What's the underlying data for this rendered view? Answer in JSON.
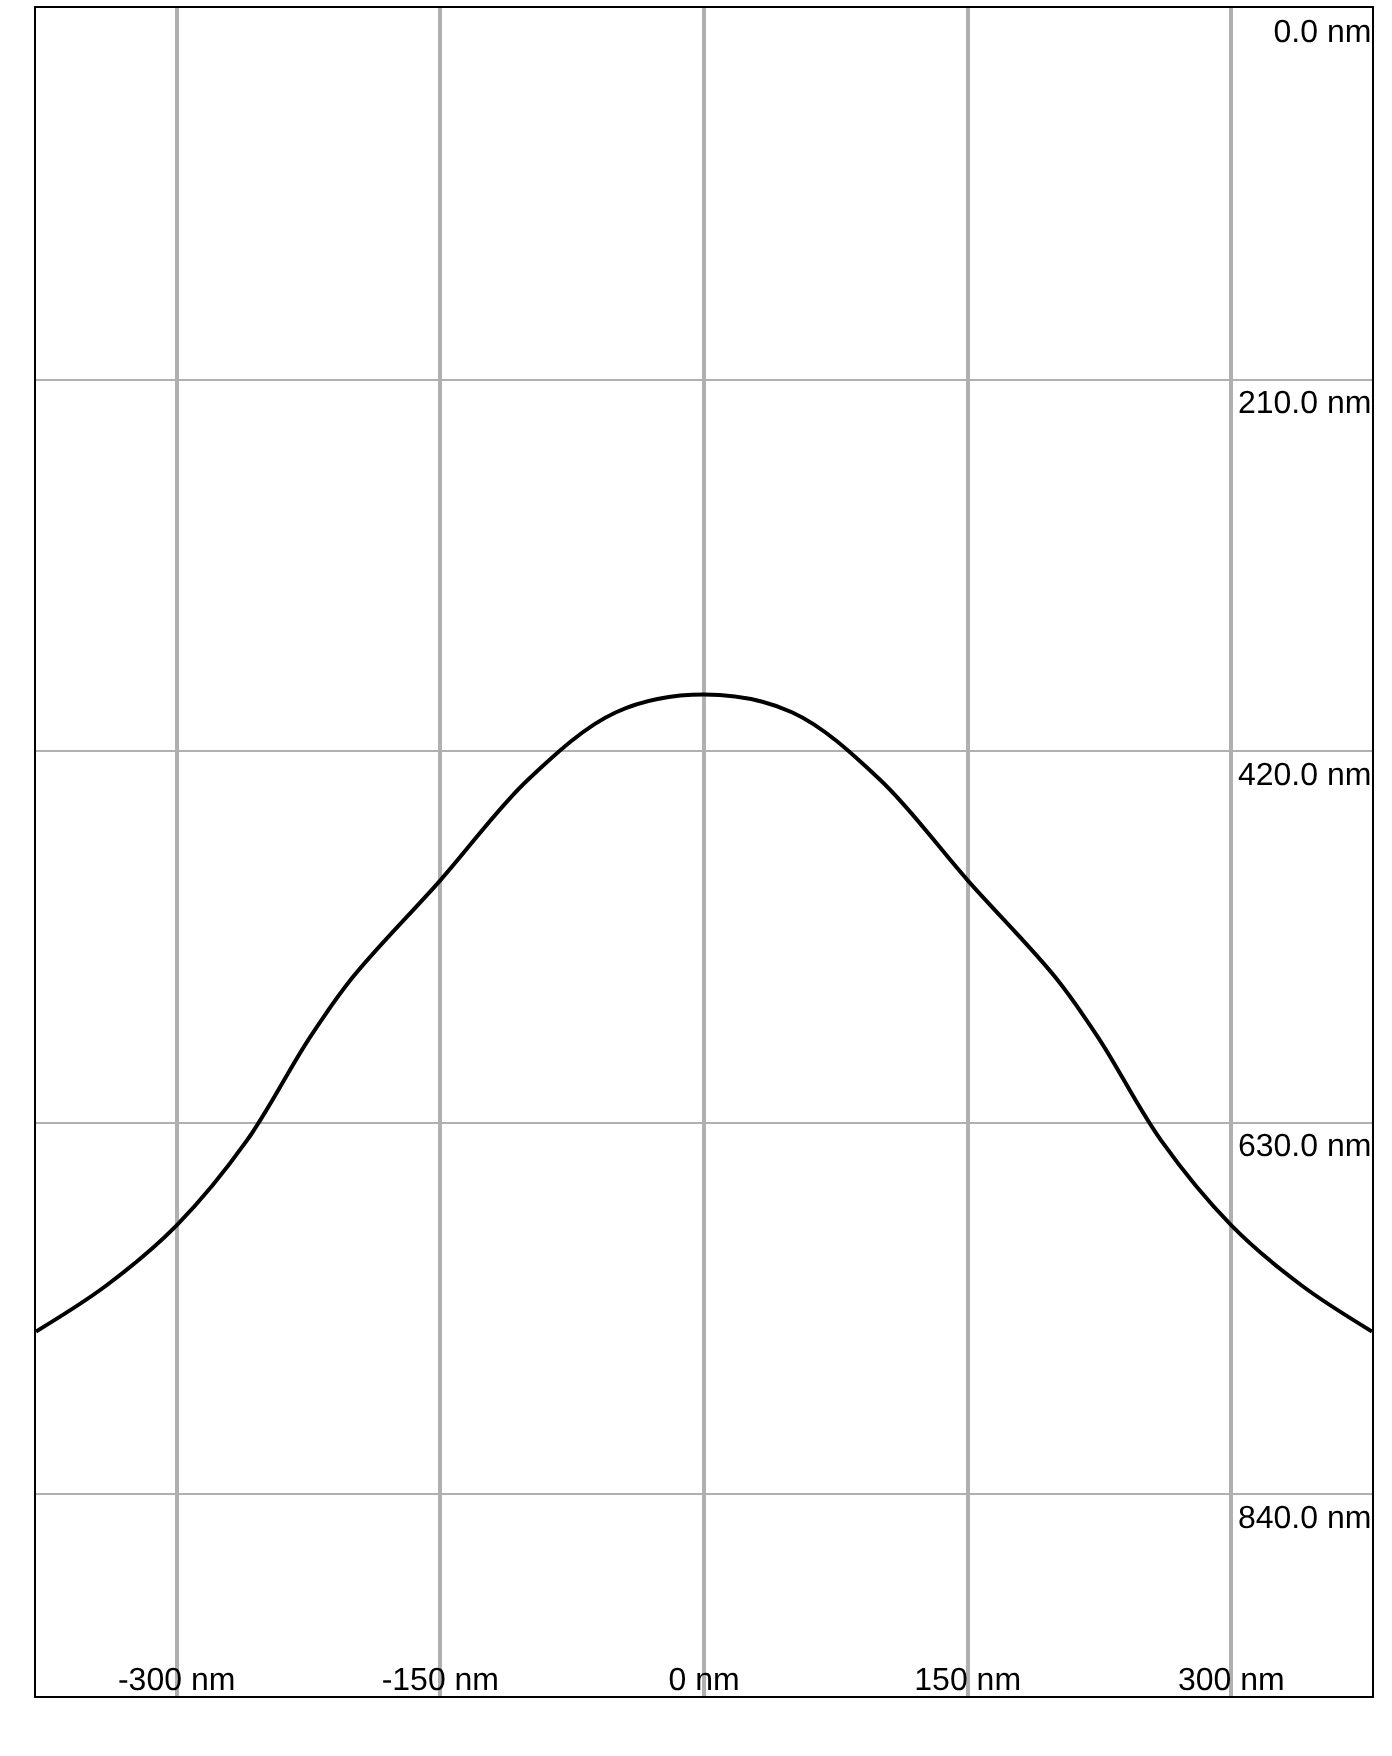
{
  "chart_data": {
    "type": "line",
    "x": [
      -380,
      -340,
      -300,
      -260,
      -225,
      -200,
      -150,
      -100,
      -50,
      0,
      50,
      100,
      150,
      200,
      225,
      260,
      300,
      340,
      380
    ],
    "series": [
      {
        "color": "#000000",
        "values": [
          748,
          722,
          688,
          640,
          583,
          548,
          493,
          436,
          398,
          388,
          398,
          436,
          493,
          548,
          583,
          640,
          688,
          722,
          748
        ]
      }
    ],
    "xlim": [
      -380,
      380
    ],
    "ylim": [
      954,
      0
    ],
    "xticks": [
      {
        "value": -300,
        "label": "-300 nm"
      },
      {
        "value": -150,
        "label": "-150 nm"
      },
      {
        "value": 0,
        "label": "0 nm"
      },
      {
        "value": 150,
        "label": "150 nm"
      },
      {
        "value": 300,
        "label": "300 nm"
      }
    ],
    "yticks": [
      {
        "value": 0,
        "label": "0.0 nm"
      },
      {
        "value": 210,
        "label": "210.0 nm"
      },
      {
        "value": 420,
        "label": "420.0 nm"
      },
      {
        "value": 630,
        "label": "630.0 nm"
      },
      {
        "value": 840,
        "label": "840.0 nm"
      }
    ],
    "grid": true,
    "marker": "none",
    "line_style": "solid"
  }
}
